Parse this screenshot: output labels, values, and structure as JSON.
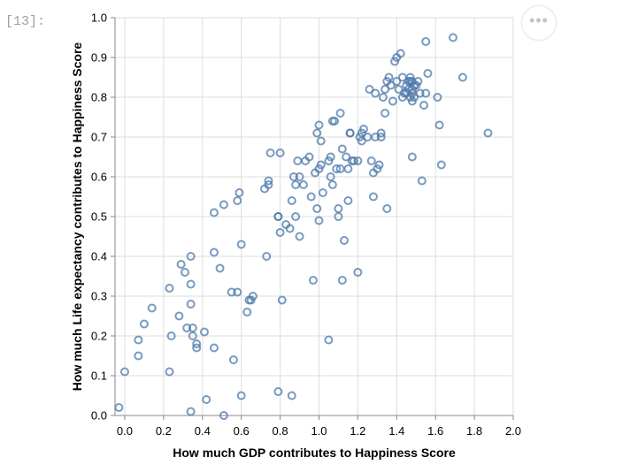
{
  "cell": {
    "prompt": "[13]:",
    "more_button_label": "•••",
    "more_icon": "more-horizontal-icon"
  },
  "chart_data": {
    "type": "scatter",
    "xlabel": "How much GDP contributes to Happiness Score",
    "ylabel": "How much Life expectancy contributes to Happiness Score",
    "xlim": [
      -0.05,
      2.0
    ],
    "ylim": [
      0.0,
      1.0
    ],
    "xticks": [
      0.0,
      0.2,
      0.4,
      0.6,
      0.8,
      1.0,
      1.2,
      1.4,
      1.6,
      1.8,
      2.0
    ],
    "xtick_labels": [
      "0.0",
      "0.2",
      "0.4",
      "0.6",
      "0.8",
      "1.0",
      "1.2",
      "1.4",
      "1.6",
      "1.8",
      "2.0"
    ],
    "yticks": [
      0.0,
      0.1,
      0.2,
      0.3,
      0.4,
      0.5,
      0.6,
      0.7,
      0.8,
      0.9,
      1.0
    ],
    "ytick_labels": [
      "0.0",
      "0.1",
      "0.2",
      "0.3",
      "0.4",
      "0.5",
      "0.6",
      "0.7",
      "0.8",
      "0.9",
      "1.0"
    ],
    "grid": true,
    "marker": "hollow-circle",
    "point_color": "#4c78a8",
    "points": [
      [
        -0.03,
        0.02
      ],
      [
        0.0,
        0.11
      ],
      [
        0.07,
        0.15
      ],
      [
        0.07,
        0.19
      ],
      [
        0.1,
        0.23
      ],
      [
        0.14,
        0.27
      ],
      [
        0.23,
        0.11
      ],
      [
        0.23,
        0.32
      ],
      [
        0.24,
        0.2
      ],
      [
        0.28,
        0.25
      ],
      [
        0.29,
        0.38
      ],
      [
        0.31,
        0.36
      ],
      [
        0.32,
        0.22
      ],
      [
        0.34,
        0.01
      ],
      [
        0.34,
        0.28
      ],
      [
        0.34,
        0.33
      ],
      [
        0.34,
        0.4
      ],
      [
        0.35,
        0.2
      ],
      [
        0.35,
        0.22
      ],
      [
        0.37,
        0.18
      ],
      [
        0.37,
        0.17
      ],
      [
        0.41,
        0.21
      ],
      [
        0.42,
        0.04
      ],
      [
        0.46,
        0.17
      ],
      [
        0.46,
        0.41
      ],
      [
        0.46,
        0.51
      ],
      [
        0.49,
        0.37
      ],
      [
        0.51,
        0.0
      ],
      [
        0.51,
        0.53
      ],
      [
        0.55,
        0.31
      ],
      [
        0.56,
        0.14
      ],
      [
        0.58,
        0.31
      ],
      [
        0.58,
        0.54
      ],
      [
        0.59,
        0.56
      ],
      [
        0.6,
        0.05
      ],
      [
        0.6,
        0.43
      ],
      [
        0.63,
        0.26
      ],
      [
        0.64,
        0.29
      ],
      [
        0.65,
        0.29
      ],
      [
        0.66,
        0.3
      ],
      [
        0.72,
        0.57
      ],
      [
        0.73,
        0.4
      ],
      [
        0.74,
        0.58
      ],
      [
        0.74,
        0.59
      ],
      [
        0.75,
        0.66
      ],
      [
        0.79,
        0.06
      ],
      [
        0.79,
        0.5
      ],
      [
        0.79,
        0.5
      ],
      [
        0.8,
        0.46
      ],
      [
        0.8,
        0.66
      ],
      [
        0.81,
        0.29
      ],
      [
        0.83,
        0.48
      ],
      [
        0.85,
        0.47
      ],
      [
        0.86,
        0.05
      ],
      [
        0.86,
        0.54
      ],
      [
        0.87,
        0.6
      ],
      [
        0.88,
        0.5
      ],
      [
        0.88,
        0.58
      ],
      [
        0.89,
        0.64
      ],
      [
        0.9,
        0.45
      ],
      [
        0.9,
        0.6
      ],
      [
        0.92,
        0.58
      ],
      [
        0.93,
        0.64
      ],
      [
        0.95,
        0.65
      ],
      [
        0.96,
        0.55
      ],
      [
        0.97,
        0.34
      ],
      [
        0.98,
        0.61
      ],
      [
        0.99,
        0.52
      ],
      [
        0.99,
        0.71
      ],
      [
        1.0,
        0.49
      ],
      [
        1.0,
        0.62
      ],
      [
        1.01,
        0.63
      ],
      [
        1.01,
        0.69
      ],
      [
        1.0,
        0.73
      ],
      [
        1.02,
        0.56
      ],
      [
        1.05,
        0.64
      ],
      [
        1.05,
        0.19
      ],
      [
        1.06,
        0.65
      ],
      [
        1.06,
        0.6
      ],
      [
        1.07,
        0.58
      ],
      [
        1.07,
        0.74
      ],
      [
        1.08,
        0.74
      ],
      [
        1.09,
        0.62
      ],
      [
        1.1,
        0.5
      ],
      [
        1.1,
        0.52
      ],
      [
        1.11,
        0.62
      ],
      [
        1.11,
        0.76
      ],
      [
        1.12,
        0.34
      ],
      [
        1.12,
        0.67
      ],
      [
        1.13,
        0.44
      ],
      [
        1.14,
        0.65
      ],
      [
        1.15,
        0.62
      ],
      [
        1.15,
        0.54
      ],
      [
        1.16,
        0.71
      ],
      [
        1.16,
        0.71
      ],
      [
        1.17,
        0.64
      ],
      [
        1.18,
        0.64
      ],
      [
        1.2,
        0.36
      ],
      [
        1.2,
        0.64
      ],
      [
        1.21,
        0.7
      ],
      [
        1.22,
        0.71
      ],
      [
        1.22,
        0.69
      ],
      [
        1.23,
        0.72
      ],
      [
        1.25,
        0.7
      ],
      [
        1.26,
        0.82
      ],
      [
        1.27,
        0.64
      ],
      [
        1.28,
        0.55
      ],
      [
        1.28,
        0.61
      ],
      [
        1.29,
        0.7
      ],
      [
        1.29,
        0.81
      ],
      [
        1.3,
        0.62
      ],
      [
        1.31,
        0.63
      ],
      [
        1.32,
        0.7
      ],
      [
        1.32,
        0.71
      ],
      [
        1.33,
        0.8
      ],
      [
        1.34,
        0.76
      ],
      [
        1.34,
        0.82
      ],
      [
        1.35,
        0.84
      ],
      [
        1.35,
        0.52
      ],
      [
        1.36,
        0.85
      ],
      [
        1.37,
        0.83
      ],
      [
        1.38,
        0.79
      ],
      [
        1.39,
        0.89
      ],
      [
        1.4,
        0.84
      ],
      [
        1.4,
        0.9
      ],
      [
        1.41,
        0.82
      ],
      [
        1.42,
        0.91
      ],
      [
        1.43,
        0.85
      ],
      [
        1.43,
        0.8
      ],
      [
        1.44,
        0.81
      ],
      [
        1.45,
        0.81
      ],
      [
        1.45,
        0.83
      ],
      [
        1.46,
        0.82
      ],
      [
        1.46,
        0.84
      ],
      [
        1.47,
        0.8
      ],
      [
        1.47,
        0.85
      ],
      [
        1.47,
        0.84
      ],
      [
        1.48,
        0.81
      ],
      [
        1.48,
        0.79
      ],
      [
        1.48,
        0.84
      ],
      [
        1.48,
        0.65
      ],
      [
        1.48,
        0.82
      ],
      [
        1.49,
        0.83
      ],
      [
        1.49,
        0.8
      ],
      [
        1.5,
        0.83
      ],
      [
        1.51,
        0.84
      ],
      [
        1.52,
        0.81
      ],
      [
        1.53,
        0.59
      ],
      [
        1.54,
        0.78
      ],
      [
        1.55,
        0.81
      ],
      [
        1.55,
        0.94
      ],
      [
        1.56,
        0.86
      ],
      [
        1.61,
        0.8
      ],
      [
        1.62,
        0.73
      ],
      [
        1.63,
        0.63
      ],
      [
        1.69,
        0.95
      ],
      [
        1.74,
        0.85
      ],
      [
        1.87,
        0.71
      ]
    ]
  }
}
